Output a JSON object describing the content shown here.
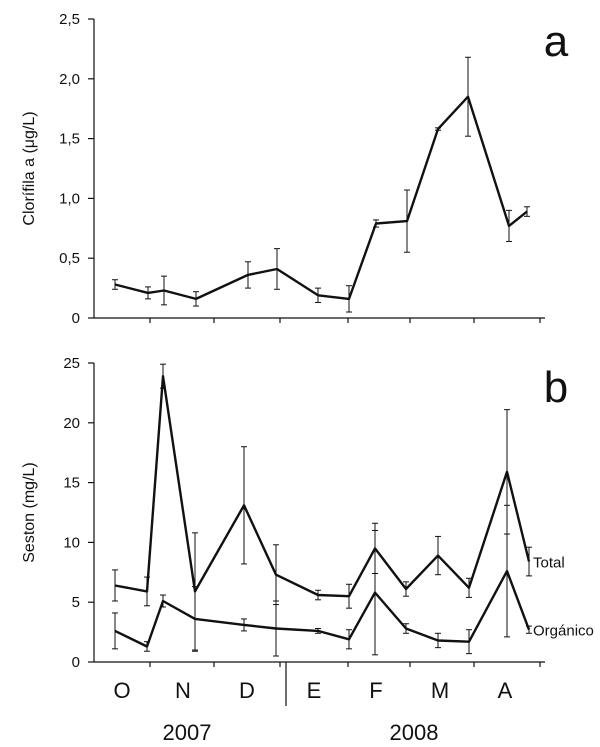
{
  "colors": {
    "line": "#111111",
    "axis": "#111111",
    "background": "#ffffff"
  },
  "months": [
    "O",
    "N",
    "D",
    "E",
    "F",
    "M",
    "A"
  ],
  "years": [
    "2007",
    "2008"
  ],
  "chart_data": [
    {
      "type": "line",
      "panel_letter": "a",
      "ylabel": "Clorífila a (μg/L)",
      "ylim": [
        0,
        2.5
      ],
      "yticks": [
        0,
        0.5,
        1.0,
        1.5,
        2.0,
        2.5
      ],
      "ytick_labels": [
        "0",
        "0,5",
        "1,0",
        "1,5",
        "2,0",
        "2,5"
      ],
      "x_unit": "month index (O=0 ... A=6)",
      "xlim": [
        -0.25,
        6.35
      ],
      "series": [
        {
          "x": [
            0.0,
            0.3,
            0.5,
            0.85,
            1.4,
            1.7,
            2.1,
            2.45,
            2.9,
            3.2,
            3.6,
            3.9,
            4.25,
            4.55,
            4.9,
            5.45,
            5.8,
            6.0
          ],
          "y": [
            0.28,
            0.21,
            0.23,
            0.16,
            0.36,
            0.41,
            0.19,
            0.16,
            0.79,
            0.81,
            1.58,
            1.85,
            0.77,
            0.89,
            null,
            null,
            null,
            null
          ],
          "err": [
            0.04,
            0.05,
            0.12,
            0.06,
            0.11,
            0.17,
            0.06,
            0.11,
            0.03,
            0.26,
            0.01,
            0.33,
            0.13,
            0.04,
            null,
            null,
            null,
            null
          ]
        }
      ]
    },
    {
      "type": "line",
      "panel_letter": "b",
      "ylabel": "Seston (mg/L)",
      "ylim": [
        0,
        25
      ],
      "yticks": [
        0,
        5,
        10,
        15,
        20,
        25
      ],
      "ytick_labels": [
        "0",
        "5",
        "10",
        "15",
        "20",
        "25"
      ],
      "xlim": [
        -0.25,
        6.35
      ],
      "series": [
        {
          "name": "Total",
          "x": [
            0.0,
            0.35,
            0.6,
            0.9,
            1.55,
            1.9,
            2.45,
            2.9,
            3.25,
            3.6,
            3.85,
            4.2,
            4.55,
            4.9
          ],
          "y": [
            6.4,
            5.9,
            23.9,
            5.9,
            13.1,
            7.3,
            5.6,
            5.5,
            9.5,
            6.1,
            8.9,
            6.2,
            15.9,
            8.4
          ],
          "err": [
            1.3,
            1.2,
            1.0,
            4.9,
            4.9,
            2.5,
            0.4,
            1.0,
            2.1,
            0.6,
            1.6,
            0.8,
            5.2,
            1.2
          ]
        },
        {
          "name": "Orgánico",
          "x": [
            0.0,
            0.35,
            0.6,
            0.9,
            1.55,
            1.9,
            2.45,
            2.9,
            3.25,
            3.6,
            3.85,
            4.2,
            4.55,
            4.9
          ],
          "y": [
            2.6,
            1.3,
            5.1,
            3.6,
            3.1,
            2.8,
            2.6,
            1.9,
            5.8,
            2.8,
            1.8,
            1.7,
            7.6,
            2.7
          ],
          "err": [
            1.5,
            0.4,
            0.5,
            2.7,
            0.5,
            2.3,
            0.2,
            0.8,
            5.2,
            0.4,
            0.6,
            1.0,
            5.5,
            0.3
          ]
        }
      ]
    }
  ]
}
